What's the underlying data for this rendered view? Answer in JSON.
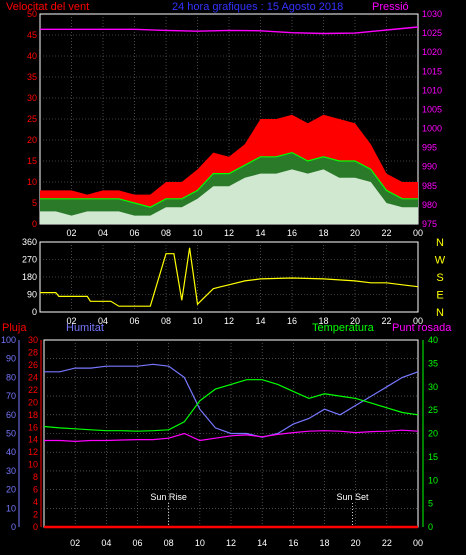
{
  "chart_data": [
    {
      "type": "line",
      "title": "24 hora grafiques : 15 Agosto 2018",
      "left_label": "Velocitat del vent",
      "right_label": "Pressió",
      "x_ticks": [
        "02",
        "04",
        "06",
        "08",
        "10",
        "12",
        "14",
        "16",
        "18",
        "20",
        "22",
        "00"
      ],
      "y_left_ticks": [
        "0",
        "5",
        "10",
        "15",
        "20",
        "25",
        "30",
        "35",
        "40",
        "45",
        "50"
      ],
      "ylim_left": [
        0,
        50
      ],
      "y_right_ticks": [
        "975",
        "980",
        "985",
        "990",
        "995",
        "1000",
        "1005",
        "1010",
        "1015",
        "1020",
        "1025",
        "1030"
      ],
      "ylim_right": [
        975,
        1030
      ],
      "grid": true,
      "series": [
        {
          "key": "gust",
          "color": "#ff0000",
          "x": [
            0,
            1,
            2,
            3,
            4,
            5,
            6,
            7,
            8,
            9,
            10,
            11,
            12,
            13,
            14,
            15,
            16,
            17,
            18,
            19,
            20,
            21,
            22,
            23,
            24
          ],
          "values": [
            8,
            8,
            8,
            7,
            8,
            8,
            7,
            7,
            10,
            10,
            13,
            17,
            16,
            19,
            25,
            25,
            26,
            24,
            26,
            25,
            24,
            19,
            12,
            10,
            10
          ]
        },
        {
          "key": "avg",
          "color": "#00ff00",
          "x": [
            0,
            1,
            2,
            3,
            4,
            5,
            6,
            7,
            8,
            9,
            10,
            11,
            12,
            13,
            14,
            15,
            16,
            17,
            18,
            19,
            20,
            21,
            22,
            23,
            24
          ],
          "values": [
            6,
            6,
            6,
            6,
            6,
            6,
            5,
            4,
            6,
            6,
            8,
            12,
            12,
            14,
            16,
            16,
            17,
            15,
            16,
            15,
            15,
            13,
            8,
            6,
            6
          ]
        },
        {
          "key": "wind",
          "color": "#ffffff",
          "x": [
            0,
            1,
            2,
            3,
            4,
            5,
            6,
            7,
            8,
            9,
            10,
            11,
            12,
            13,
            14,
            15,
            16,
            17,
            18,
            19,
            20,
            21,
            22,
            23,
            24
          ],
          "values": [
            3,
            3,
            2,
            3,
            3,
            3,
            2,
            2,
            4,
            4,
            6,
            9,
            9,
            11,
            12,
            12,
            13,
            12,
            13,
            11,
            11,
            10,
            5,
            4,
            4
          ]
        },
        {
          "key": "pressure",
          "color": "#ff00ff",
          "axis": "right",
          "x": [
            0,
            2,
            4,
            6,
            8,
            10,
            12,
            14,
            16,
            18,
            20,
            22,
            24
          ],
          "values": [
            1026,
            1026,
            1026,
            1026,
            1025.7,
            1025.5,
            1025.7,
            1025.6,
            1025.1,
            1024.9,
            1025,
            1025.8,
            1026.6
          ]
        }
      ]
    },
    {
      "type": "line",
      "right_labels": [
        "N",
        "W",
        "S",
        "E",
        "N"
      ],
      "y_left_ticks": [
        "360",
        "270",
        "180",
        "90",
        "0"
      ],
      "ylim": [
        0,
        360
      ],
      "x_ticks": [
        "02",
        "04",
        "06",
        "08",
        "10",
        "12",
        "14",
        "16",
        "18",
        "20",
        "22",
        "00"
      ],
      "series": [
        {
          "key": "direction",
          "color": "#ffff00",
          "x": [
            0,
            1,
            1.2,
            3,
            3.2,
            4.5,
            5,
            7,
            8,
            8.5,
            9,
            9.5,
            10,
            10.5,
            11,
            11.5,
            12,
            13,
            14,
            16,
            18,
            20,
            21,
            22,
            23,
            24
          ],
          "values": [
            100,
            100,
            80,
            80,
            55,
            55,
            30,
            30,
            300,
            300,
            60,
            330,
            40,
            80,
            120,
            130,
            140,
            160,
            170,
            175,
            170,
            160,
            150,
            150,
            140,
            130
          ]
        }
      ]
    },
    {
      "type": "line",
      "left_labels": [
        "Pluja",
        "Humitat"
      ],
      "right_labels": [
        "Temperatura",
        "Punt rosada"
      ],
      "y_hum_ticks": [
        "0",
        "10",
        "20",
        "30",
        "40",
        "50",
        "60",
        "70",
        "80",
        "90",
        "100"
      ],
      "ylim_hum": [
        0,
        100
      ],
      "y_rain_ticks": [
        "0",
        "2",
        "4",
        "6",
        "8",
        "10",
        "12",
        "14",
        "16",
        "18",
        "20",
        "22",
        "24",
        "26",
        "28",
        "30"
      ],
      "ylim_rain": [
        0,
        30
      ],
      "y_temp_ticks": [
        "0",
        "5",
        "10",
        "15",
        "20",
        "25",
        "30",
        "35",
        "40"
      ],
      "ylim_temp": [
        0,
        40
      ],
      "x_ticks": [
        "02",
        "04",
        "06",
        "08",
        "10",
        "12",
        "14",
        "16",
        "18",
        "20",
        "22",
        "00"
      ],
      "annotations": [
        {
          "text": "Sun Rise",
          "x": 8
        },
        {
          "text": "Sun Set",
          "x": 19.8
        }
      ],
      "series": [
        {
          "key": "humidity",
          "color": "#7777ff",
          "axis": "hum",
          "x": [
            0,
            1,
            2,
            3,
            4,
            5,
            6,
            7,
            8,
            9,
            10,
            11,
            12,
            13,
            14,
            15,
            16,
            17,
            18,
            19,
            20,
            21,
            22,
            23,
            24
          ],
          "values": [
            83,
            83,
            85,
            85,
            86,
            86,
            86,
            87,
            86,
            80,
            63,
            53,
            50,
            50,
            48,
            50,
            55,
            58,
            63,
            60,
            65,
            70,
            75,
            80,
            83
          ]
        },
        {
          "key": "temperature",
          "color": "#00ff00",
          "axis": "temp",
          "x": [
            0,
            1,
            2,
            3,
            4,
            5,
            6,
            7,
            8,
            9,
            10,
            11,
            12,
            13,
            14,
            15,
            16,
            17,
            18,
            19,
            20,
            21,
            22,
            23,
            24
          ],
          "values": [
            21.5,
            21.2,
            21,
            20.8,
            20.6,
            20.6,
            20.5,
            20.6,
            20.8,
            22.5,
            27,
            29.5,
            30.5,
            31.5,
            31.5,
            30.5,
            29,
            27.5,
            28.5,
            28,
            27.5,
            26.5,
            25.5,
            24.5,
            24
          ]
        },
        {
          "key": "dewpoint",
          "color": "#ff00ff",
          "axis": "temp",
          "x": [
            0,
            1,
            2,
            3,
            4,
            5,
            6,
            7,
            8,
            9,
            10,
            11,
            12,
            13,
            14,
            15,
            16,
            17,
            18,
            19,
            20,
            21,
            22,
            23,
            24
          ],
          "values": [
            18.5,
            18.5,
            18.3,
            18.5,
            18.5,
            18.6,
            18.7,
            18.7,
            19,
            20,
            18.5,
            19,
            19.5,
            19.7,
            19.3,
            19.8,
            20.2,
            20.5,
            20.6,
            20.5,
            20.2,
            20.4,
            20.5,
            20.7,
            20.5
          ]
        },
        {
          "key": "rain",
          "color": "#ff0000",
          "axis": "rain",
          "x": [
            0,
            24
          ],
          "values": [
            0,
            0
          ]
        }
      ]
    }
  ]
}
